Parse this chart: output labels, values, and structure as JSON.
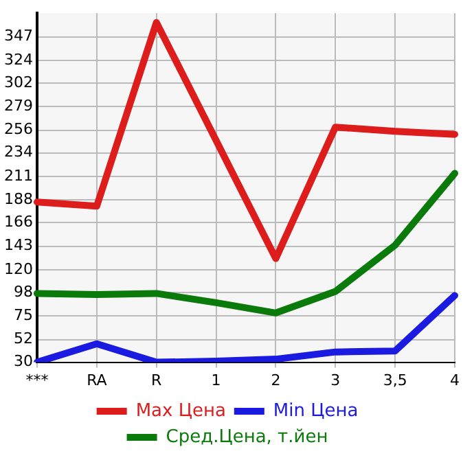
{
  "chart_data": {
    "type": "line",
    "categories": [
      "***",
      "RA",
      "R",
      "1",
      "2",
      "3",
      "3,5",
      "4"
    ],
    "series": [
      {
        "name": "Max Цена",
        "color": "#dd1c1c",
        "values": [
          186,
          182,
          361,
          246,
          131,
          259,
          255,
          252
        ]
      },
      {
        "name": "Min Цена",
        "color": "#1a1ae0",
        "values": [
          30,
          48,
          30,
          31,
          33,
          40,
          41,
          95
        ]
      },
      {
        "name": "Сред.Цена, т.йен",
        "color": "#0a7a0a",
        "values": [
          97,
          96,
          97,
          88,
          78,
          99,
          144,
          214
        ]
      }
    ],
    "ylim": [
      30,
      370
    ],
    "yticks": [
      30,
      52,
      75,
      98,
      120,
      143,
      166,
      188,
      211,
      234,
      256,
      279,
      302,
      324,
      347
    ],
    "grid": true,
    "legend": "bottom",
    "marker": "none",
    "line_style": "solid"
  }
}
